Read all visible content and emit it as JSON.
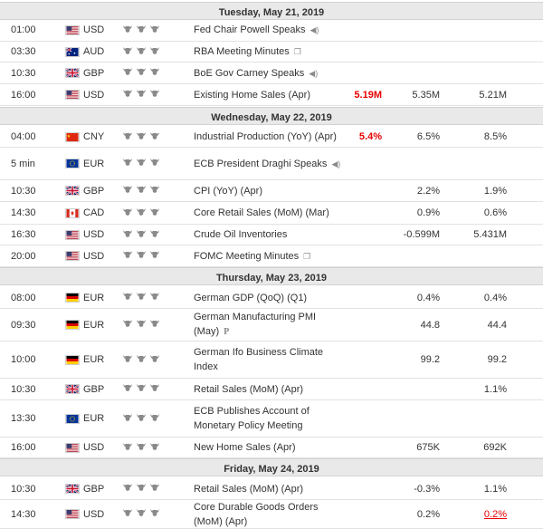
{
  "days": [
    {
      "label": "Tuesday, May 21, 2019",
      "events": [
        {
          "time": "01:00",
          "flag": "us",
          "currency": "USD",
          "event": "Fed Chair Powell Speaks",
          "extra_icon": "speaker-icon",
          "actual": "",
          "forecast": "",
          "previous": ""
        },
        {
          "time": "03:30",
          "flag": "au",
          "currency": "AUD",
          "event": "RBA Meeting Minutes",
          "extra_icon": "document-icon",
          "actual": "",
          "forecast": "",
          "previous": ""
        },
        {
          "time": "10:30",
          "flag": "gb",
          "currency": "GBP",
          "event": "BoE Gov Carney Speaks",
          "extra_icon": "speaker-icon",
          "actual": "",
          "forecast": "",
          "previous": ""
        },
        {
          "time": "16:00",
          "flag": "us",
          "currency": "USD",
          "event": "Existing Home Sales (Apr)",
          "extra_icon": "",
          "actual": "5.19M",
          "actual_style": "red",
          "forecast": "5.35M",
          "previous": "5.21M"
        }
      ]
    },
    {
      "label": "Wednesday, May 22, 2019",
      "events": [
        {
          "time": "04:00",
          "flag": "cn",
          "currency": "CNY",
          "event": "Industrial Production (YoY) (Apr)",
          "extra_icon": "",
          "actual": "5.4%",
          "actual_style": "red",
          "forecast": "6.5%",
          "previous": "8.5%"
        },
        {
          "time": "5 min",
          "flag": "eu",
          "currency": "EUR",
          "event": "ECB President Draghi Speaks",
          "extra_icon": "speaker-icon",
          "actual": "",
          "forecast": "",
          "previous": ""
        },
        {
          "time": "10:30",
          "flag": "gb",
          "currency": "GBP",
          "event": "CPI (YoY) (Apr)",
          "extra_icon": "",
          "actual": "",
          "forecast": "2.2%",
          "previous": "1.9%"
        },
        {
          "time": "14:30",
          "flag": "ca",
          "currency": "CAD",
          "event": "Core Retail Sales (MoM) (Mar)",
          "extra_icon": "",
          "actual": "",
          "forecast": "0.9%",
          "previous": "0.6%"
        },
        {
          "time": "16:30",
          "flag": "us",
          "currency": "USD",
          "event": "Crude Oil Inventories",
          "extra_icon": "",
          "actual": "",
          "forecast": "-0.599M",
          "previous": "5.431M"
        },
        {
          "time": "20:00",
          "flag": "us",
          "currency": "USD",
          "event": "FOMC Meeting Minutes",
          "extra_icon": "document-icon",
          "actual": "",
          "forecast": "",
          "previous": ""
        }
      ]
    },
    {
      "label": "Thursday, May 23, 2019",
      "events": [
        {
          "time": "08:00",
          "flag": "de",
          "currency": "EUR",
          "event": "German GDP (QoQ) (Q1)",
          "extra_icon": "",
          "actual": "",
          "forecast": "0.4%",
          "previous": "0.4%"
        },
        {
          "time": "09:30",
          "flag": "de",
          "currency": "EUR",
          "event": "German Manufacturing PMI (May)",
          "extra_icon": "preliminary-icon",
          "extra_text": "P",
          "actual": "",
          "forecast": "44.8",
          "previous": "44.4"
        },
        {
          "time": "10:00",
          "flag": "de",
          "currency": "EUR",
          "event": "German Ifo Business Climate Index",
          "extra_icon": "",
          "actual": "",
          "forecast": "99.2",
          "previous": "99.2"
        },
        {
          "time": "10:30",
          "flag": "gb",
          "currency": "GBP",
          "event": "Retail Sales (MoM) (Apr)",
          "extra_icon": "",
          "actual": "",
          "forecast": "",
          "previous": "1.1%"
        },
        {
          "time": "13:30",
          "flag": "eu",
          "currency": "EUR",
          "event": "ECB Publishes Account of Monetary Policy Meeting",
          "extra_icon": "",
          "actual": "",
          "forecast": "",
          "previous": ""
        },
        {
          "time": "16:00",
          "flag": "us",
          "currency": "USD",
          "event": "New Home Sales (Apr)",
          "extra_icon": "",
          "actual": "",
          "forecast": "675K",
          "previous": "692K"
        }
      ]
    },
    {
      "label": "Friday, May 24, 2019",
      "events": [
        {
          "time": "10:30",
          "flag": "gb",
          "currency": "GBP",
          "event": "Retail Sales (MoM) (Apr)",
          "extra_icon": "",
          "actual": "",
          "forecast": "-0.3%",
          "previous": "1.1%"
        },
        {
          "time": "14:30",
          "flag": "us",
          "currency": "USD",
          "event": "Core Durable Goods Orders (MoM) (Apr)",
          "extra_icon": "",
          "actual": "",
          "forecast": "0.2%",
          "previous": "0.2%",
          "previous_style": "red-ul"
        }
      ]
    }
  ],
  "importance_icon": "bull-icon"
}
